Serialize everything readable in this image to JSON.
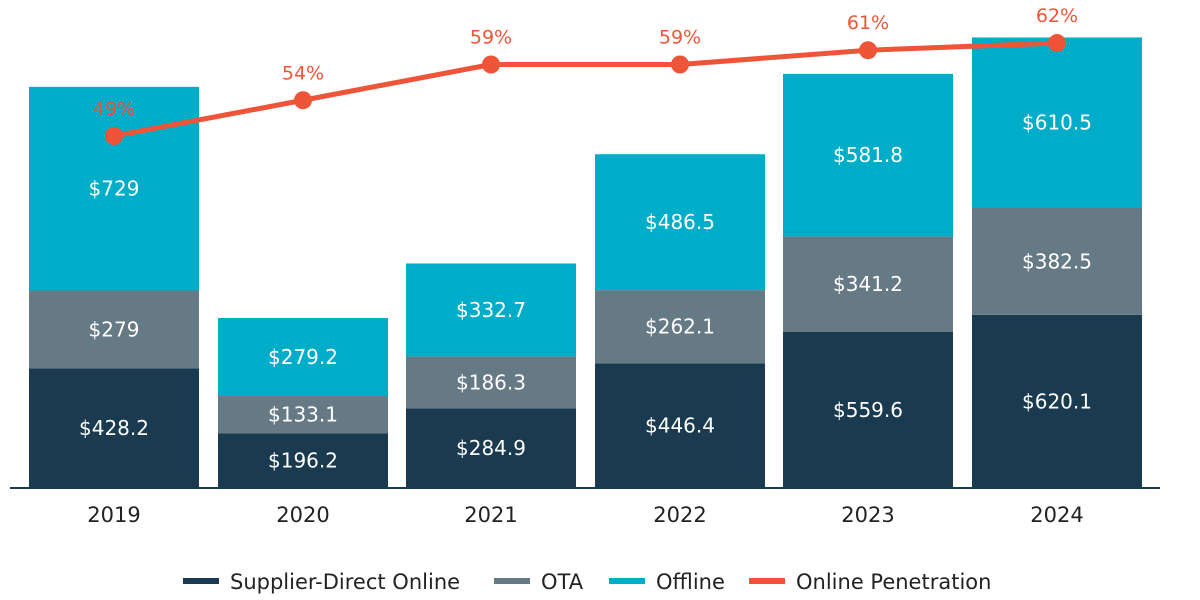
{
  "chart_data": {
    "type": "bar",
    "stacked": true,
    "categories": [
      "2019",
      "2020",
      "2021",
      "2022",
      "2023",
      "2024"
    ],
    "series": [
      {
        "name": "Supplier-Direct Online",
        "color": "#1a3a50",
        "values": [
          428.2,
          196.2,
          284.9,
          446.4,
          559.6,
          620.1
        ],
        "labels": [
          "$428.2",
          "$196.2",
          "$284.9",
          "$446.4",
          "$559.6",
          "$620.1"
        ]
      },
      {
        "name": "OTA",
        "color": "#667a86",
        "values": [
          279,
          133.1,
          186.3,
          262.1,
          341.2,
          382.5
        ],
        "labels": [
          "$279",
          "$133.1",
          "$186.3",
          "$262.1",
          "$341.2",
          "$382.5"
        ]
      },
      {
        "name": "Offline",
        "color": "#00adc8",
        "values": [
          729,
          279.2,
          332.7,
          486.5,
          581.8,
          610.5
        ],
        "labels": [
          "$729",
          "$279.2",
          "$332.7",
          "$486.5",
          "$581.8",
          "$610.5"
        ]
      }
    ],
    "line_series": {
      "name": "Online Penetration",
      "color": "#ee5538",
      "values": [
        49,
        54,
        59,
        59,
        61,
        62
      ],
      "labels": [
        "49%",
        "54%",
        "59%",
        "59%",
        "61%",
        "62%"
      ]
    },
    "legend_position": "bottom",
    "grid": false
  }
}
